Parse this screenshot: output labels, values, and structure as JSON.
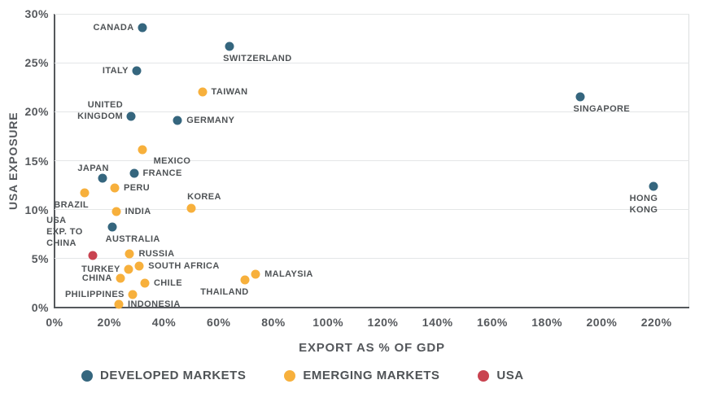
{
  "chart_data": {
    "type": "scatter",
    "title": "",
    "xlabel": "EXPORT AS % OF GDP",
    "ylabel": "USA EXPOSURE",
    "xlim": [
      0,
      232
    ],
    "ylim": [
      0,
      30
    ],
    "x_ticks": [
      0,
      20,
      40,
      60,
      80,
      100,
      120,
      140,
      160,
      180,
      200,
      220
    ],
    "y_ticks": [
      0,
      5,
      10,
      15,
      20,
      25,
      30
    ],
    "tick_suffix": "%",
    "grid": "horizontal-only",
    "legend_position": "bottom",
    "series": [
      {
        "id": "developed",
        "name": "DEVELOPED MARKETS",
        "color": "#35667E"
      },
      {
        "id": "emerging",
        "name": "EMERGING MARKETS",
        "color": "#F7B03C"
      },
      {
        "id": "usa",
        "name": "USA",
        "color": "#C94350"
      }
    ],
    "points": [
      {
        "label": "CANADA",
        "x": 32,
        "y": 28.6,
        "group": "developed",
        "anchor": "left"
      },
      {
        "label": "SWITZERLAND",
        "x": 64,
        "y": 26.7,
        "group": "developed",
        "anchor": "below"
      },
      {
        "label": "ITALY",
        "x": 30,
        "y": 24.2,
        "group": "developed",
        "anchor": "left"
      },
      {
        "label": "TAIWAN",
        "x": 54,
        "y": 22.0,
        "group": "emerging",
        "anchor": "right"
      },
      {
        "label": "UNITED\nKINGDOM",
        "x": 28,
        "y": 19.5,
        "group": "developed",
        "anchor": "left",
        "dy": -7
      },
      {
        "label": "GERMANY",
        "x": 45,
        "y": 19.1,
        "group": "developed",
        "anchor": "right"
      },
      {
        "label": "SINGAPORE",
        "x": 192,
        "y": 21.5,
        "group": "developed",
        "anchor": "below"
      },
      {
        "label": "MEXICO",
        "x": 32,
        "y": 16.1,
        "group": "emerging",
        "anchor": "below-right"
      },
      {
        "label": "JAPAN",
        "x": 17.5,
        "y": 13.2,
        "group": "developed",
        "anchor": "above-left"
      },
      {
        "label": "FRANCE",
        "x": 29,
        "y": 13.7,
        "group": "developed",
        "anchor": "right"
      },
      {
        "label": "PERU",
        "x": 22,
        "y": 12.2,
        "group": "emerging",
        "anchor": "right"
      },
      {
        "label": "BRAZIL",
        "x": 11,
        "y": 11.7,
        "group": "emerging",
        "anchor": "below-left"
      },
      {
        "label": "KOREA",
        "x": 50,
        "y": 10.1,
        "group": "emerging",
        "anchor": "above"
      },
      {
        "label": "INDIA",
        "x": 22.5,
        "y": 9.8,
        "group": "emerging",
        "anchor": "right"
      },
      {
        "label": "AUSTRALIA",
        "x": 21,
        "y": 8.2,
        "group": "developed",
        "anchor": "below"
      },
      {
        "label": "USA\nEXP. TO\nCHINA",
        "x": 14,
        "y": 5.3,
        "group": "usa",
        "anchor": "custom",
        "dx": -57,
        "dy": -50
      },
      {
        "label": "RUSSIA",
        "x": 27.5,
        "y": 5.5,
        "group": "emerging",
        "anchor": "right"
      },
      {
        "label": "TURKEY",
        "x": 27,
        "y": 3.9,
        "group": "emerging",
        "anchor": "left"
      },
      {
        "label": "SOUTH AFRICA",
        "x": 31,
        "y": 4.2,
        "group": "emerging",
        "anchor": "right"
      },
      {
        "label": "CHINA",
        "x": 24,
        "y": 3.0,
        "group": "emerging",
        "anchor": "left"
      },
      {
        "label": "CHILE",
        "x": 33,
        "y": 2.5,
        "group": "emerging",
        "anchor": "right"
      },
      {
        "label": "PHILIPPINES",
        "x": 28.5,
        "y": 1.3,
        "group": "emerging",
        "anchor": "left"
      },
      {
        "label": "INDONESIA",
        "x": 23.5,
        "y": 0.3,
        "group": "emerging",
        "anchor": "right"
      },
      {
        "label": "THAILAND",
        "x": 69.5,
        "y": 2.8,
        "group": "emerging",
        "anchor": "below-left"
      },
      {
        "label": "MALAYSIA",
        "x": 73.5,
        "y": 3.4,
        "group": "emerging",
        "anchor": "right"
      },
      {
        "label": "HONG KONG",
        "x": 219,
        "y": 12.4,
        "group": "developed",
        "anchor": "below-left"
      }
    ]
  }
}
